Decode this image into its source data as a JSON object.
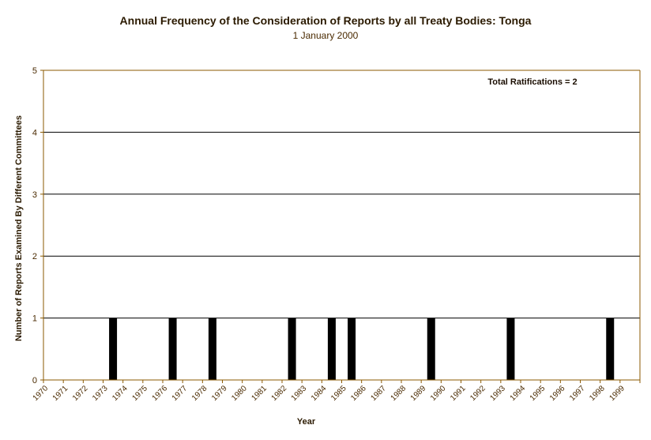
{
  "chart_data": {
    "type": "bar",
    "title": "Annual Frequency of the Consideration of Reports by all Treaty Bodies: Tonga",
    "subtitle": "1 January 2000",
    "xlabel": "Year",
    "ylabel": "Number of Reports Examined By Different Committees",
    "ylim": [
      0,
      5
    ],
    "yticks": [
      0,
      1,
      2,
      3,
      4,
      5
    ],
    "grid": true,
    "annotation": "Total Ratifications = 2",
    "categories": [
      "1970",
      "1971",
      "1972",
      "1973",
      "1974",
      "1975",
      "1976",
      "1977",
      "1978",
      "1979",
      "1980",
      "1981",
      "1982",
      "1983",
      "1984",
      "1985",
      "1986",
      "1987",
      "1988",
      "1989",
      "1990",
      "1991",
      "1992",
      "1993",
      "1994",
      "1995",
      "1996",
      "1997",
      "1998",
      "1999"
    ],
    "values": [
      0,
      0,
      0,
      1,
      0,
      0,
      1,
      0,
      1,
      0,
      0,
      0,
      1,
      0,
      1,
      1,
      0,
      0,
      0,
      1,
      0,
      0,
      0,
      1,
      0,
      0,
      0,
      0,
      1,
      0
    ],
    "colors": {
      "bar": "#000000",
      "grid": "#000000",
      "axis": "#8b5a00",
      "text": "#4a2a00"
    }
  }
}
